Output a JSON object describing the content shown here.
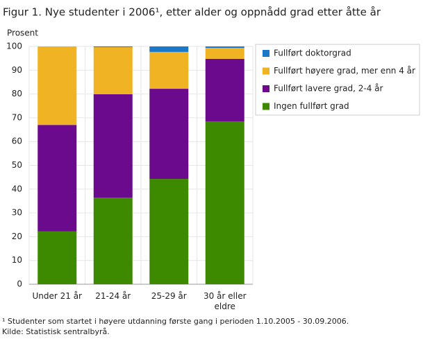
{
  "chart_data": {
    "type": "stacked_bar",
    "title": "Figur 1. Nye studenter i 2006¹, etter alder og oppnådd grad etter åtte år",
    "y_label": "Prosent",
    "categories": [
      "Under 21 år",
      "21-24 år",
      "25-29 år",
      "30 år eller eldre"
    ],
    "series": [
      {
        "name": "Ingen fullført grad",
        "color": "#3d8a00",
        "values": [
          22.2,
          36.4,
          44.3,
          68.5
        ]
      },
      {
        "name": "Fullført lavere grad, 2-4 år",
        "color": "#6b0a8c",
        "values": [
          44.8,
          43.5,
          37.9,
          26.3
        ]
      },
      {
        "name": "Fullført høyere grad, mer enn 4 år",
        "color": "#efb323",
        "values": [
          33,
          19.8,
          15.5,
          4.6
        ]
      },
      {
        "name": "Fullført doktorgrad",
        "color": "#1a78c8",
        "values": [
          0,
          0.3,
          2.3,
          0.6
        ]
      }
    ],
    "ylim": [
      0,
      100
    ],
    "yticks": [
      0,
      10,
      20,
      30,
      40,
      50,
      60,
      70,
      80,
      90,
      100
    ],
    "grid": true,
    "footnote": "¹ Studenter som startet i høyere utdanning første gang i perioden 1.10.2005 - 30.09.2006.",
    "source": "Kilde: Statistisk sentralbyrå."
  }
}
